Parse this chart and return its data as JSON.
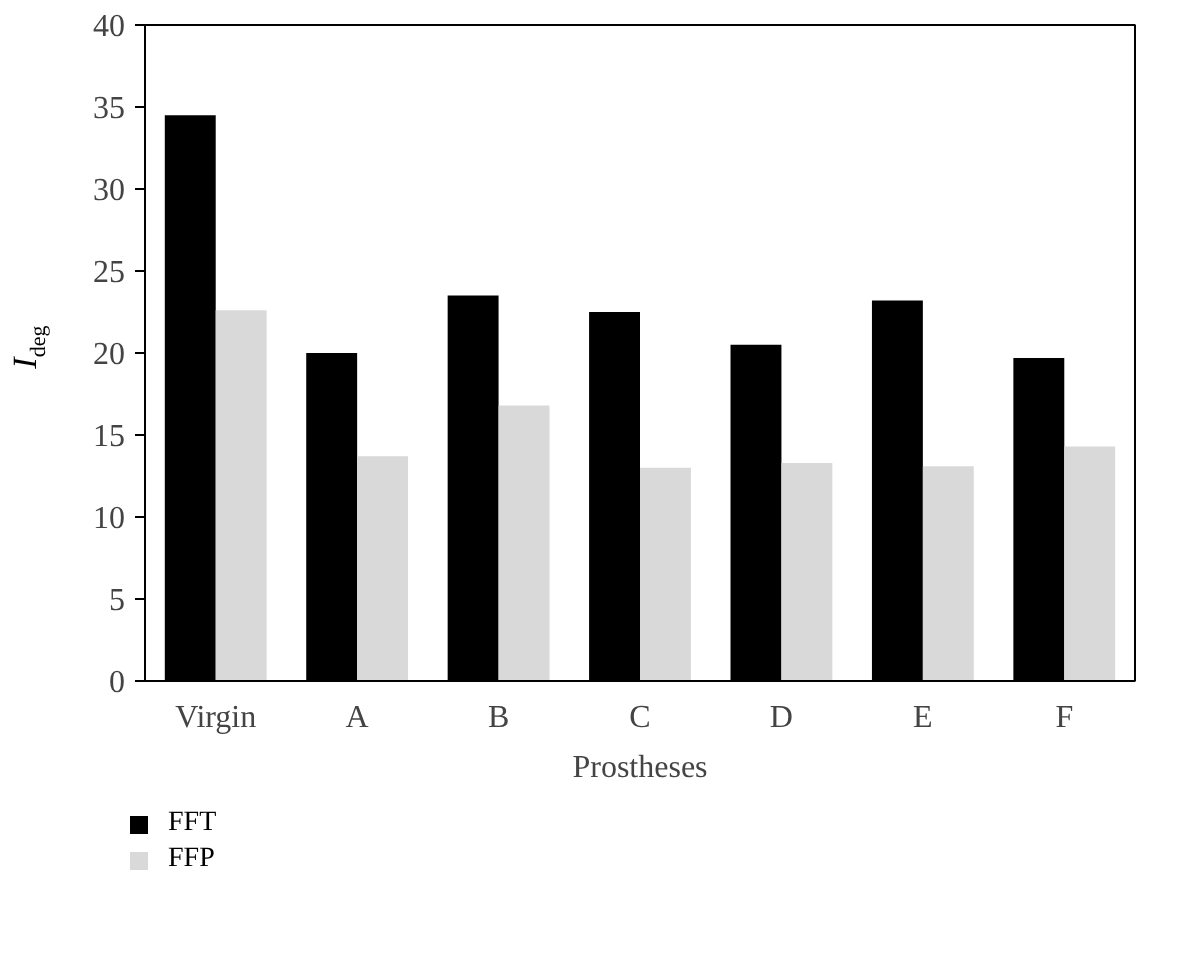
{
  "chart_data": {
    "type": "bar",
    "xlabel": "Prostheses",
    "ylabel": "I$_{deg}$",
    "categories": [
      "Virgin",
      "A",
      "B",
      "C",
      "D",
      "E",
      "F"
    ],
    "series": [
      {
        "name": "FFT",
        "color": "#000000",
        "values": [
          34.5,
          20.0,
          23.5,
          22.5,
          20.5,
          23.2,
          19.7
        ]
      },
      {
        "name": "FFP",
        "color": "#d9d9d9",
        "values": [
          22.6,
          13.7,
          16.8,
          13.0,
          13.3,
          13.1,
          14.3
        ]
      }
    ],
    "ylim": [
      0,
      40
    ],
    "yticks": [
      0,
      5,
      10,
      15,
      20,
      25,
      30,
      35,
      40
    ],
    "grid": false,
    "legend": "bottom left"
  }
}
